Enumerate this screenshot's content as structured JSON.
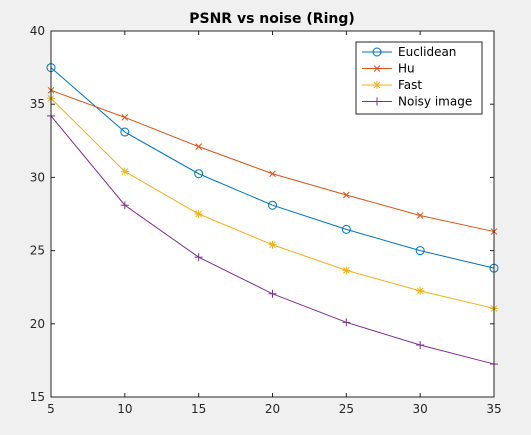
{
  "chart_data": {
    "type": "line",
    "title": "PSNR vs noise (Ring)",
    "xlabel": "",
    "ylabel": "",
    "x": [
      5,
      10,
      15,
      20,
      25,
      30,
      35
    ],
    "xlim": [
      5,
      35
    ],
    "ylim": [
      15,
      40
    ],
    "xticks": [
      5,
      10,
      15,
      20,
      25,
      30,
      35
    ],
    "yticks": [
      15,
      20,
      25,
      30,
      35,
      40
    ],
    "grid": false,
    "legend_position": "top-right",
    "series": [
      {
        "name": "Euclidean",
        "color": "#0072BD",
        "marker": "circle",
        "values": [
          37.5,
          33.1,
          30.25,
          28.1,
          26.45,
          25.0,
          23.8
        ]
      },
      {
        "name": "Hu",
        "color": "#D95319",
        "marker": "x",
        "values": [
          35.95,
          34.1,
          32.1,
          30.25,
          28.8,
          27.4,
          26.3
        ]
      },
      {
        "name": "Fast",
        "color": "#EDB120",
        "marker": "star",
        "values": [
          35.4,
          30.4,
          27.5,
          25.4,
          23.65,
          22.25,
          21.05
        ]
      },
      {
        "name": "Noisy image",
        "color": "#7E2F8E",
        "marker": "plus",
        "values": [
          34.2,
          28.1,
          24.55,
          22.05,
          20.1,
          18.55,
          17.25
        ]
      }
    ]
  }
}
